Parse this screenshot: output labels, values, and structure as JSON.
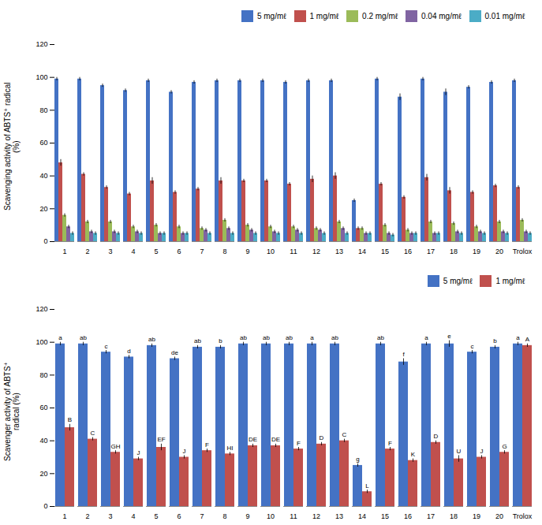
{
  "chart_data": [
    {
      "type": "bar",
      "ylabel": "Scavenging activity of ABTS⁺ radical\n(%)",
      "categories": [
        "1",
        "2",
        "3",
        "4",
        "5",
        "6",
        "7",
        "8",
        "9",
        "10",
        "11",
        "12",
        "13",
        "14",
        "15",
        "16",
        "17",
        "18",
        "19",
        "20",
        "Trolox"
      ],
      "series": [
        {
          "name": "5 mg/mℓ",
          "color": "#4472c4",
          "values": [
            99,
            99,
            95,
            92,
            98,
            91,
            97,
            98,
            98,
            98,
            97,
            98,
            98,
            25,
            99,
            88,
            99,
            91,
            94,
            97,
            98
          ],
          "errors": [
            1,
            1,
            1,
            1,
            1,
            1,
            1,
            1,
            1,
            1,
            1,
            1,
            1,
            1,
            1,
            2,
            1,
            2,
            1,
            1,
            1
          ]
        },
        {
          "name": "1 mg/mℓ",
          "color": "#c0504d",
          "values": [
            48,
            41,
            33,
            29,
            37,
            30,
            32,
            37,
            37,
            37,
            35,
            38,
            40,
            8,
            35,
            27,
            39,
            31,
            30,
            34,
            33
          ],
          "errors": [
            2,
            1,
            1,
            1,
            2,
            1,
            1,
            2,
            1,
            1,
            1,
            2,
            2,
            1,
            1,
            1,
            2,
            2,
            1,
            1,
            1
          ]
        },
        {
          "name": "0.2 mg/mℓ",
          "color": "#9bbb59",
          "values": [
            16,
            12,
            12,
            9,
            10,
            9,
            8,
            13,
            10,
            9,
            9,
            8,
            12,
            8,
            10,
            7,
            12,
            11,
            9,
            12,
            13
          ],
          "errors": [
            1,
            1,
            1,
            1,
            1,
            1,
            1,
            1,
            1,
            1,
            1,
            1,
            1,
            1,
            1,
            1,
            1,
            1,
            1,
            1,
            1
          ]
        },
        {
          "name": "0.04 mg/mℓ",
          "color": "#8064a2",
          "values": [
            9,
            6,
            6,
            6,
            5,
            5,
            7,
            8,
            7,
            6,
            7,
            7,
            8,
            5,
            5,
            5,
            5,
            6,
            6,
            6,
            6
          ],
          "errors": [
            1,
            1,
            1,
            1,
            1,
            1,
            1,
            1,
            1,
            1,
            1,
            1,
            1,
            1,
            1,
            1,
            1,
            1,
            1,
            1,
            1
          ]
        },
        {
          "name": "0.01 mg/mℓ",
          "color": "#4bacc6",
          "values": [
            5,
            5,
            5,
            5,
            5,
            5,
            5,
            5,
            5,
            5,
            5,
            5,
            5,
            5,
            4,
            5,
            5,
            5,
            5,
            5,
            5
          ],
          "errors": [
            1,
            1,
            1,
            1,
            1,
            1,
            1,
            1,
            1,
            1,
            1,
            1,
            1,
            1,
            1,
            1,
            1,
            1,
            1,
            1,
            1
          ]
        }
      ],
      "ylim": [
        0,
        120
      ],
      "yticks": [
        0,
        20,
        40,
        60,
        80,
        100,
        120
      ],
      "grid": false,
      "legend": "upper right"
    },
    {
      "type": "bar",
      "ylabel": "Scavenger activity of ABTS⁺\nradical (%)",
      "categories": [
        "1",
        "2",
        "3",
        "4",
        "5",
        "6",
        "7",
        "8",
        "9",
        "10",
        "11",
        "12",
        "13",
        "14",
        "15",
        "16",
        "17",
        "18",
        "19",
        "20",
        "Trolox"
      ],
      "series": [
        {
          "name": "5 mg/mℓ",
          "color": "#4472c4",
          "values": [
            99,
            99,
            94,
            91,
            98,
            90,
            97,
            97,
            99,
            99,
            99,
            99,
            99,
            25,
            99,
            88,
            99,
            99,
            94,
            97,
            99
          ],
          "errors": [
            1,
            1,
            1,
            1,
            1,
            1,
            1,
            1,
            1,
            1,
            1,
            1,
            1,
            1,
            1,
            2,
            1,
            2,
            1,
            1,
            1
          ],
          "annotations": [
            "a",
            "ab",
            "c",
            "d",
            "ab",
            "de",
            "ab",
            "b",
            "ab",
            "ab",
            "ab",
            "a",
            "ab",
            "g",
            "ab",
            "f",
            "a",
            "e",
            "c",
            "b",
            "a"
          ]
        },
        {
          "name": "1 mg/mℓ",
          "color": "#c0504d",
          "values": [
            48,
            41,
            33,
            29,
            36,
            30,
            34,
            32,
            37,
            37,
            35,
            38,
            40,
            9,
            35,
            28,
            39,
            29,
            30,
            33,
            98
          ],
          "errors": [
            2,
            1,
            1,
            1,
            2,
            1,
            1,
            1,
            1,
            1,
            1,
            1,
            1,
            1,
            1,
            1,
            1,
            2,
            1,
            1,
            1
          ],
          "annotations": [
            "B",
            "C",
            "GH",
            "J",
            "EF",
            "J",
            "F",
            "HI",
            "DE",
            "DE",
            "F",
            "D",
            "C",
            "L",
            "F",
            "K",
            "D",
            "U",
            "J",
            "G",
            "A"
          ]
        }
      ],
      "ylim": [
        0,
        120
      ],
      "yticks": [
        0,
        20,
        40,
        60,
        80,
        100,
        120
      ],
      "grid": false,
      "legend": "upper right"
    }
  ]
}
